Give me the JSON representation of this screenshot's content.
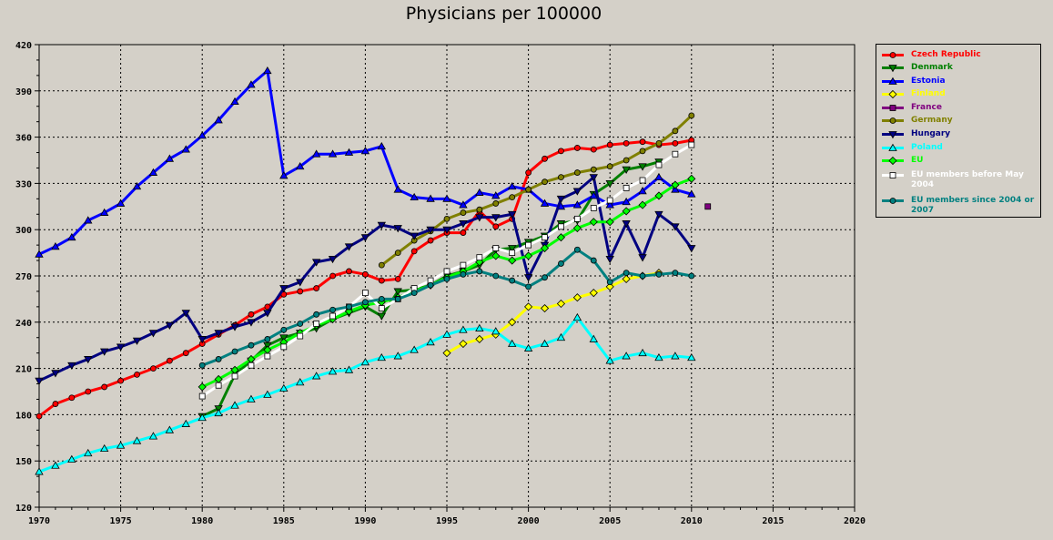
{
  "chart_data": {
    "type": "line",
    "title": "Physicians per 100000",
    "xlabel": "",
    "ylabel": "",
    "xlim": [
      1970,
      2020
    ],
    "ylim": [
      120,
      420
    ],
    "xticks": [
      1970,
      1975,
      1980,
      1985,
      1990,
      1995,
      2000,
      2005,
      2010,
      2015,
      2020
    ],
    "yticks": [
      120,
      150,
      180,
      210,
      240,
      270,
      300,
      330,
      360,
      390,
      420
    ],
    "grid": true,
    "legend_position": "right",
    "series": [
      {
        "name": "Czech Republic",
        "color": "#ff0000",
        "marker": "circle",
        "x": [
          1970,
          1971,
          1972,
          1973,
          1974,
          1975,
          1976,
          1977,
          1978,
          1979,
          1980,
          1981,
          1982,
          1983,
          1984,
          1985,
          1986,
          1987,
          1988,
          1989,
          1990,
          1991,
          1992,
          1993,
          1994,
          1995,
          1996,
          1997,
          1998,
          1999,
          2000,
          2001,
          2002,
          2003,
          2004,
          2005,
          2006,
          2007,
          2008,
          2009,
          2010
        ],
        "y": [
          179,
          187,
          191,
          195,
          198,
          202,
          206,
          210,
          215,
          220,
          226,
          232,
          238,
          245,
          250,
          258,
          260,
          262,
          270,
          273,
          271,
          267,
          268,
          286,
          293,
          298,
          298,
          312,
          302,
          307,
          337,
          346,
          351,
          353,
          352,
          355,
          356,
          357,
          355,
          356,
          358
        ]
      },
      {
        "name": "Denmark",
        "color": "#008000",
        "marker": "triangle-down",
        "x": [
          1980,
          1981,
          1982,
          1983,
          1984,
          1985,
          1986,
          1987,
          1988,
          1989,
          1990,
          1991,
          1992,
          1993,
          1994,
          1995,
          1996,
          1997,
          1998,
          1999,
          2000,
          2001,
          2002,
          2003,
          2004,
          2005,
          2006,
          2007,
          2008
        ],
        "y": [
          179,
          184,
          206,
          215,
          225,
          230,
          233,
          236,
          242,
          246,
          250,
          244,
          260,
          261,
          264,
          270,
          273,
          277,
          287,
          288,
          292,
          296,
          304,
          306,
          323,
          330,
          339,
          341,
          344
        ]
      },
      {
        "name": "Estonia",
        "color": "#0000ff",
        "marker": "triangle-up",
        "x": [
          1970,
          1971,
          1972,
          1973,
          1974,
          1975,
          1976,
          1977,
          1978,
          1979,
          1980,
          1981,
          1982,
          1983,
          1984,
          1985,
          1986,
          1987,
          1988,
          1989,
          1990,
          1991,
          1992,
          1993,
          1994,
          1995,
          1996,
          1997,
          1998,
          1999,
          2000,
          2001,
          2002,
          2003,
          2004,
          2005,
          2006,
          2007,
          2008,
          2009,
          2010
        ],
        "y": [
          284,
          289,
          295,
          306,
          311,
          317,
          328,
          337,
          346,
          352,
          361,
          371,
          383,
          394,
          403,
          335,
          341,
          349,
          349,
          350,
          351,
          354,
          326,
          321,
          320,
          320,
          316,
          324,
          322,
          328,
          326,
          317,
          315,
          316,
          322,
          316,
          318,
          325,
          334,
          326,
          323
        ]
      },
      {
        "name": "Finland",
        "color": "#ffff00",
        "marker": "diamond",
        "x": [
          1995,
          1996,
          1997,
          1998,
          1999,
          2000,
          2001,
          2002,
          2003,
          2004,
          2005,
          2006,
          2007,
          2008
        ],
        "y": [
          220,
          226,
          229,
          232,
          240,
          250,
          249,
          252,
          256,
          259,
          263,
          268,
          270,
          272
        ]
      },
      {
        "name": "France",
        "color": "#800080",
        "marker": "square",
        "x": [
          2011
        ],
        "y": [
          315
        ]
      },
      {
        "name": "Germany",
        "color": "#808000",
        "marker": "circle",
        "x": [
          1991,
          1992,
          1993,
          1994,
          1995,
          1996,
          1997,
          1998,
          1999,
          2000,
          2001,
          2002,
          2003,
          2004,
          2005,
          2006,
          2007,
          2008,
          2009,
          2010
        ],
        "y": [
          277,
          285,
          293,
          299,
          307,
          311,
          313,
          317,
          321,
          326,
          331,
          334,
          337,
          339,
          341,
          345,
          351,
          356,
          364,
          374
        ]
      },
      {
        "name": "Hungary",
        "color": "#000080",
        "marker": "triangle-down",
        "x": [
          1970,
          1971,
          1972,
          1973,
          1974,
          1975,
          1976,
          1977,
          1978,
          1979,
          1980,
          1981,
          1982,
          1983,
          1984,
          1985,
          1986,
          1987,
          1988,
          1989,
          1990,
          1991,
          1992,
          1993,
          1994,
          1995,
          1996,
          1997,
          1998,
          1999,
          2000,
          2001,
          2002,
          2003,
          2004,
          2005,
          2006,
          2007,
          2008,
          2009,
          2010
        ],
        "y": [
          202,
          207,
          212,
          216,
          221,
          224,
          228,
          233,
          238,
          246,
          229,
          233,
          237,
          240,
          246,
          262,
          266,
          279,
          281,
          289,
          295,
          303,
          301,
          296,
          300,
          300,
          304,
          308,
          308,
          310,
          269,
          290,
          320,
          325,
          334,
          281,
          304,
          282,
          310,
          302,
          288
        ]
      },
      {
        "name": "Poland",
        "color": "#00ffff",
        "marker": "triangle-up",
        "x": [
          1970,
          1971,
          1972,
          1973,
          1974,
          1975,
          1976,
          1977,
          1978,
          1979,
          1980,
          1981,
          1982,
          1983,
          1984,
          1985,
          1986,
          1987,
          1988,
          1989,
          1990,
          1991,
          1992,
          1993,
          1994,
          1995,
          1996,
          1997,
          1998,
          1999,
          2000,
          2001,
          2002,
          2003,
          2004,
          2005,
          2006,
          2007,
          2008,
          2009,
          2010
        ],
        "y": [
          143,
          147,
          151,
          155,
          158,
          160,
          163,
          166,
          170,
          174,
          178,
          181,
          186,
          190,
          193,
          197,
          201,
          205,
          208,
          209,
          214,
          217,
          218,
          222,
          227,
          232,
          235,
          236,
          234,
          226,
          223,
          226,
          230,
          243,
          229,
          215,
          218,
          220,
          217,
          218,
          217
        ]
      },
      {
        "name": "EU",
        "color": "#00ff00",
        "marker": "diamond",
        "x": [
          1980,
          1981,
          1982,
          1983,
          1984,
          1985,
          1986,
          1987,
          1988,
          1989,
          1990,
          1991,
          1992,
          1993,
          1994,
          1995,
          1996,
          1997,
          1998,
          1999,
          2000,
          2001,
          2002,
          2003,
          2004,
          2005,
          2006,
          2007,
          2008,
          2009,
          2010
        ],
        "y": [
          198,
          203,
          209,
          216,
          222,
          227,
          233,
          238,
          242,
          247,
          251,
          253,
          256,
          260,
          264,
          269,
          273,
          279,
          283,
          280,
          283,
          288,
          295,
          301,
          305,
          305,
          312,
          316,
          322,
          329,
          333
        ]
      },
      {
        "name": "EU members before May 2004",
        "color": "#ffffff",
        "marker": "square",
        "x": [
          1980,
          1981,
          1982,
          1983,
          1984,
          1985,
          1986,
          1987,
          1988,
          1989,
          1990,
          1991,
          1992,
          1993,
          1994,
          1995,
          1996,
          1997,
          1998,
          1999,
          2000,
          2001,
          2002,
          2003,
          2004,
          2005,
          2006,
          2007,
          2008,
          2009,
          2010
        ],
        "y": [
          192,
          199,
          205,
          212,
          218,
          224,
          231,
          239,
          244,
          250,
          259,
          249,
          255,
          262,
          267,
          273,
          277,
          282,
          288,
          285,
          290,
          295,
          302,
          307,
          314,
          319,
          327,
          332,
          342,
          349,
          355
        ]
      },
      {
        "name": "EU members since 2004 or 2007",
        "color": "#008080",
        "marker": "circle",
        "x": [
          1980,
          1981,
          1982,
          1983,
          1984,
          1985,
          1986,
          1987,
          1988,
          1989,
          1990,
          1991,
          1992,
          1993,
          1994,
          1995,
          1996,
          1997,
          1998,
          1999,
          2000,
          2001,
          2002,
          2003,
          2004,
          2005,
          2006,
          2007,
          2008,
          2009,
          2010
        ],
        "y": [
          212,
          216,
          221,
          225,
          229,
          235,
          239,
          245,
          248,
          250,
          253,
          255,
          255,
          259,
          264,
          268,
          271,
          273,
          270,
          267,
          263,
          269,
          278,
          287,
          280,
          266,
          272,
          270,
          271,
          272,
          270
        ]
      }
    ]
  }
}
